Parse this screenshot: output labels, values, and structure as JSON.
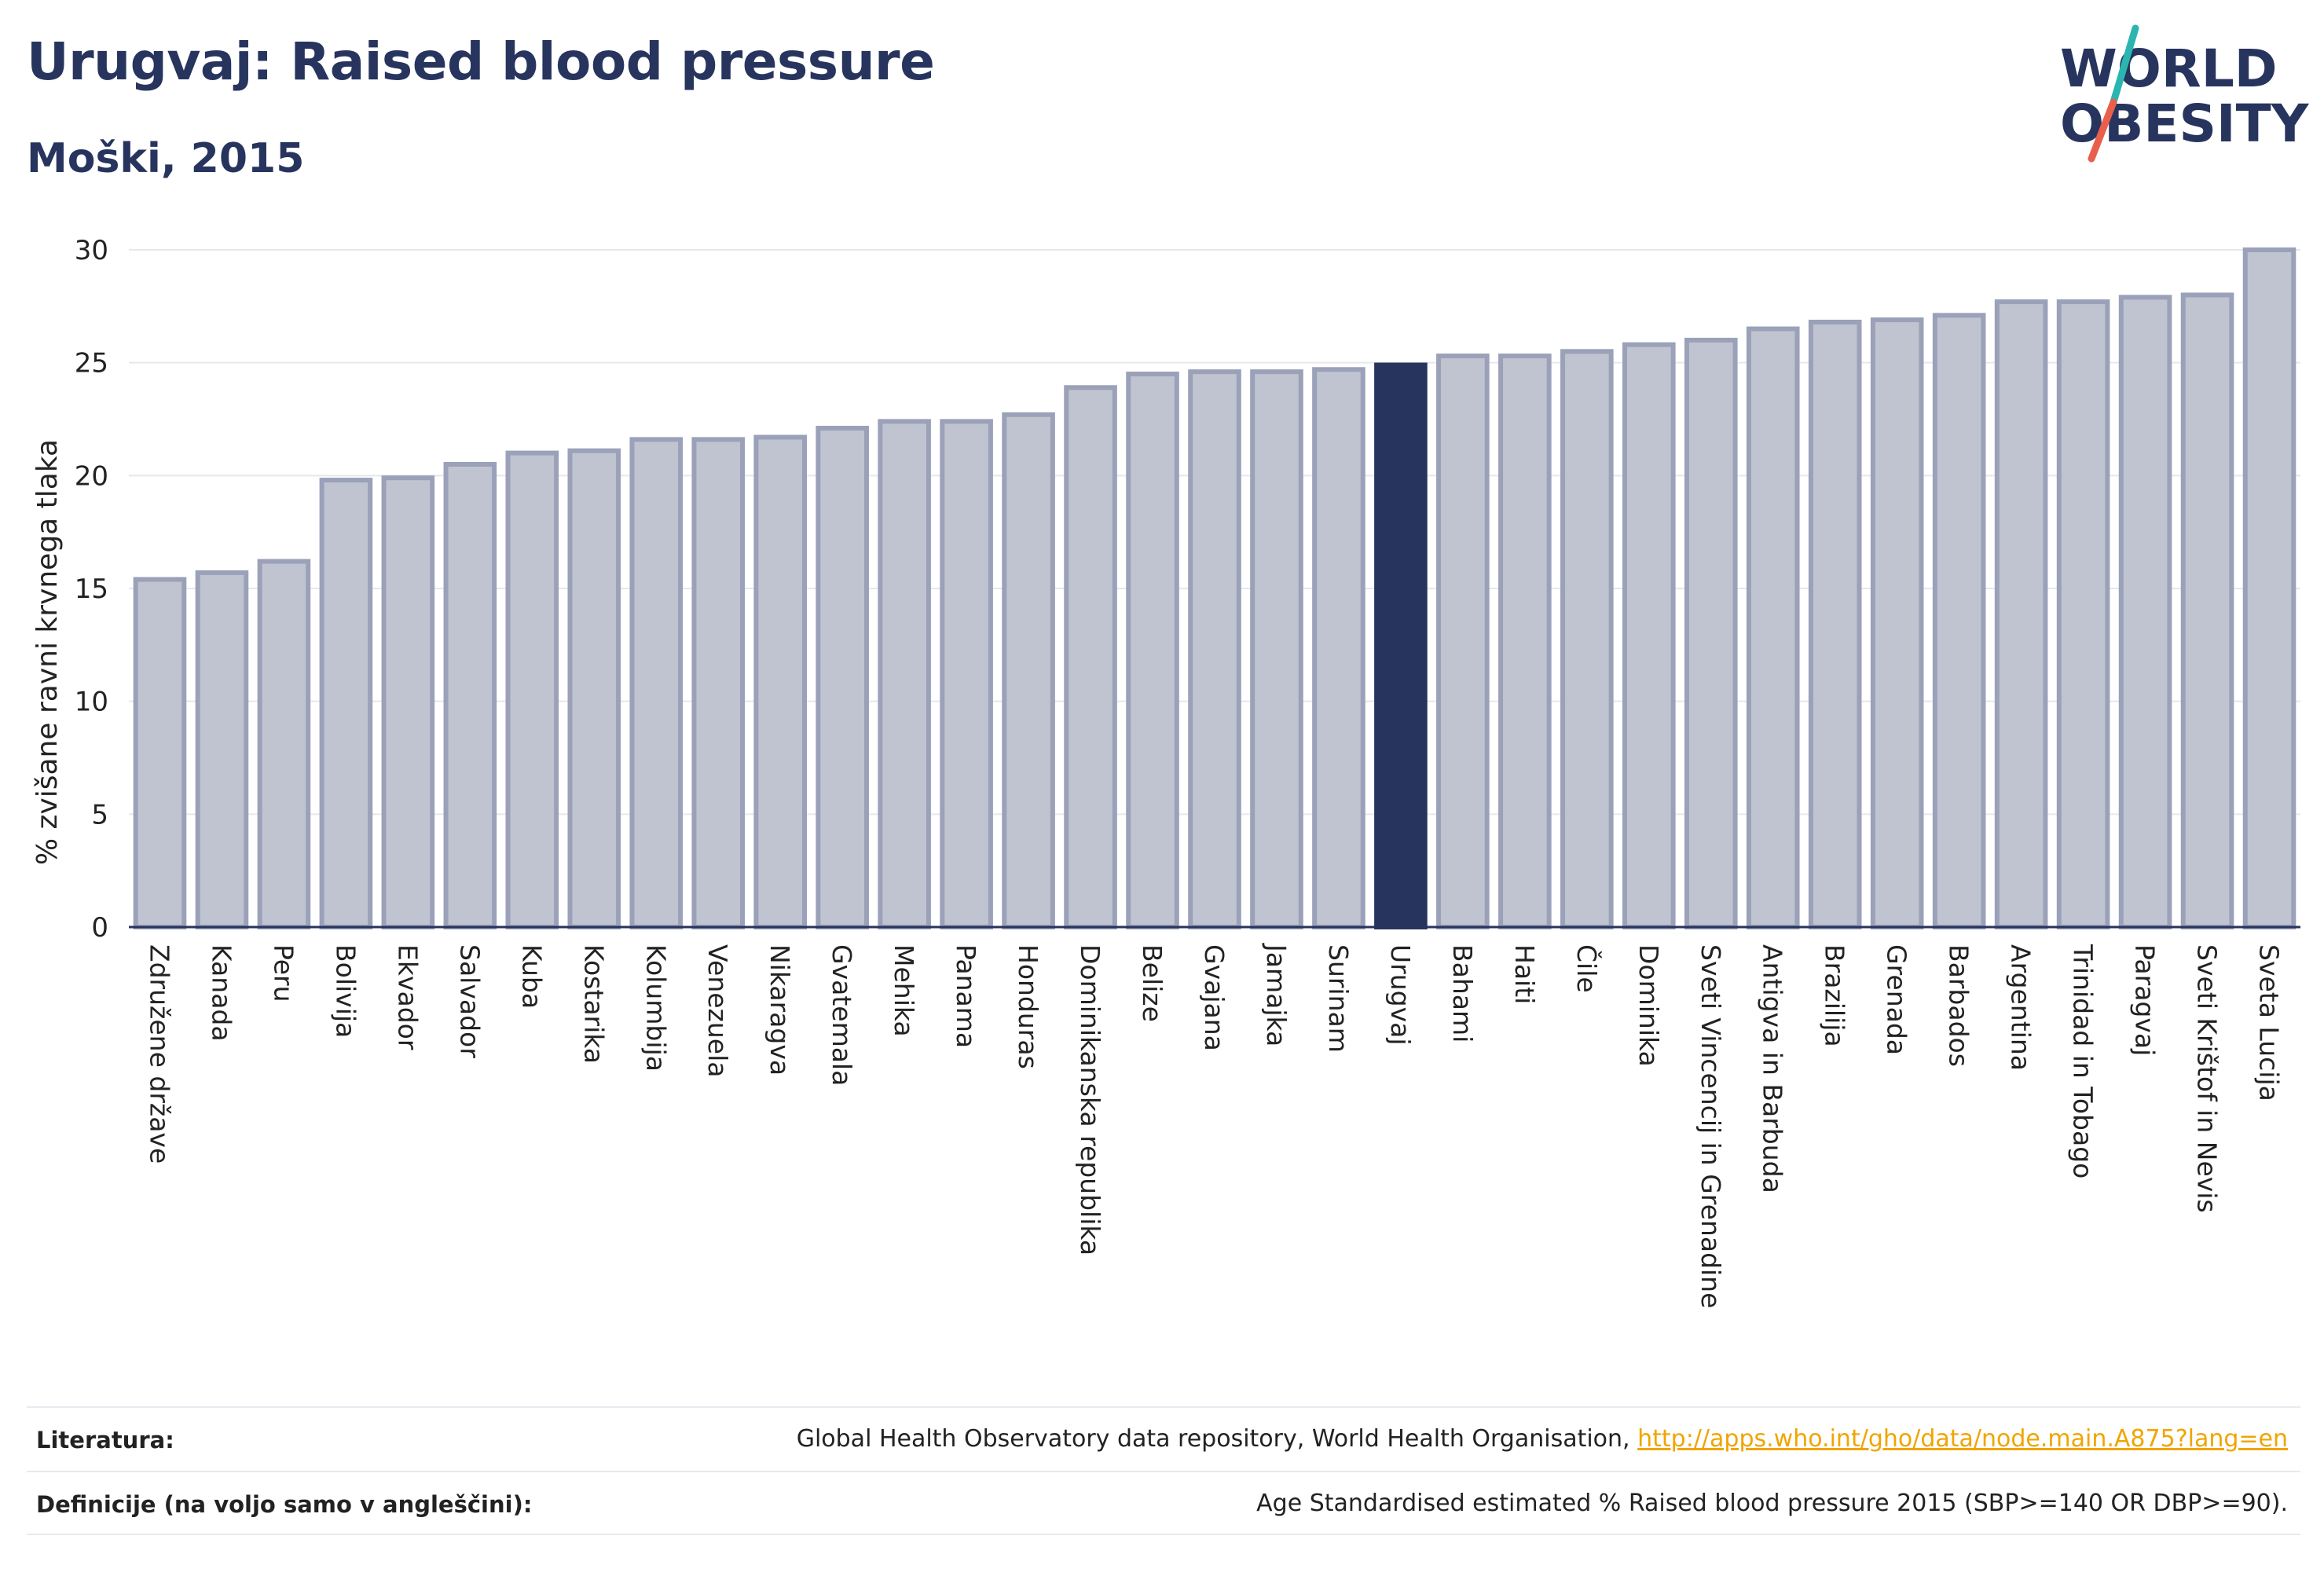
{
  "header": {
    "title": "Urugvaj: Raised blood pressure",
    "subtitle": "Moški, 2015"
  },
  "logo": {
    "line1": "WORLD",
    "line2": "OBESITY",
    "colors": {
      "text": "#27345e",
      "slash_top": "#2bb5b0",
      "slash_bottom": "#e8604c"
    }
  },
  "chart_data": {
    "type": "bar",
    "ylabel": "% zvišane ravni krvnega tlaka",
    "xlabel": "",
    "ylim": [
      0,
      30
    ],
    "yticks": [
      0,
      5,
      10,
      15,
      20,
      25,
      30
    ],
    "grid": true,
    "highlight": "Urugvaj",
    "colors": {
      "bar": "#c0c4d0",
      "bar_edge": "#9aa1b8",
      "highlight": "#27345e",
      "axis": "#27345e",
      "grid": "#e6e8ee"
    },
    "categories": [
      "Združene države",
      "Kanada",
      "Peru",
      "Bolivija",
      "Ekvador",
      "Salvador",
      "Kuba",
      "Kostarika",
      "Kolumbija",
      "Venezuela",
      "Nikaragva",
      "Gvatemala",
      "Mehika",
      "Panama",
      "Honduras",
      "Dominikanska republika",
      "Belize",
      "Gvajana",
      "Jamajka",
      "Surinam",
      "Urugvaj",
      "Bahami",
      "Haiti",
      "Čile",
      "Dominika",
      "Sveti Vincencij in Grenadine",
      "Antigva in Barbuda",
      "Brazilija",
      "Grenada",
      "Barbados",
      "Argentina",
      "Trinidad in Tobago",
      "Paragvaj",
      "Sveti Krištof in Nevis",
      "Sveta Lucija"
    ],
    "values": [
      15.4,
      15.7,
      16.2,
      19.8,
      19.9,
      20.5,
      21.0,
      21.1,
      21.6,
      21.6,
      21.7,
      22.1,
      22.4,
      22.4,
      22.7,
      23.9,
      24.5,
      24.6,
      24.6,
      24.7,
      24.9,
      25.3,
      25.3,
      25.5,
      25.8,
      26.0,
      26.5,
      26.8,
      26.9,
      27.1,
      27.7,
      27.7,
      27.9,
      28.0,
      30.0
    ]
  },
  "footer": {
    "sources_label": "Literatura:",
    "sources_text": "Global Health Observatory data repository, World Health Organisation,",
    "sources_link": "http://apps.who.int/gho/data/node.main.A875?lang=en",
    "definitions_label": "Definicije (na voljo samo v angleščini):",
    "definitions_text": "Age Standardised estimated % Raised blood pressure 2015 (SBP>=140 OR DBP>=90)."
  }
}
